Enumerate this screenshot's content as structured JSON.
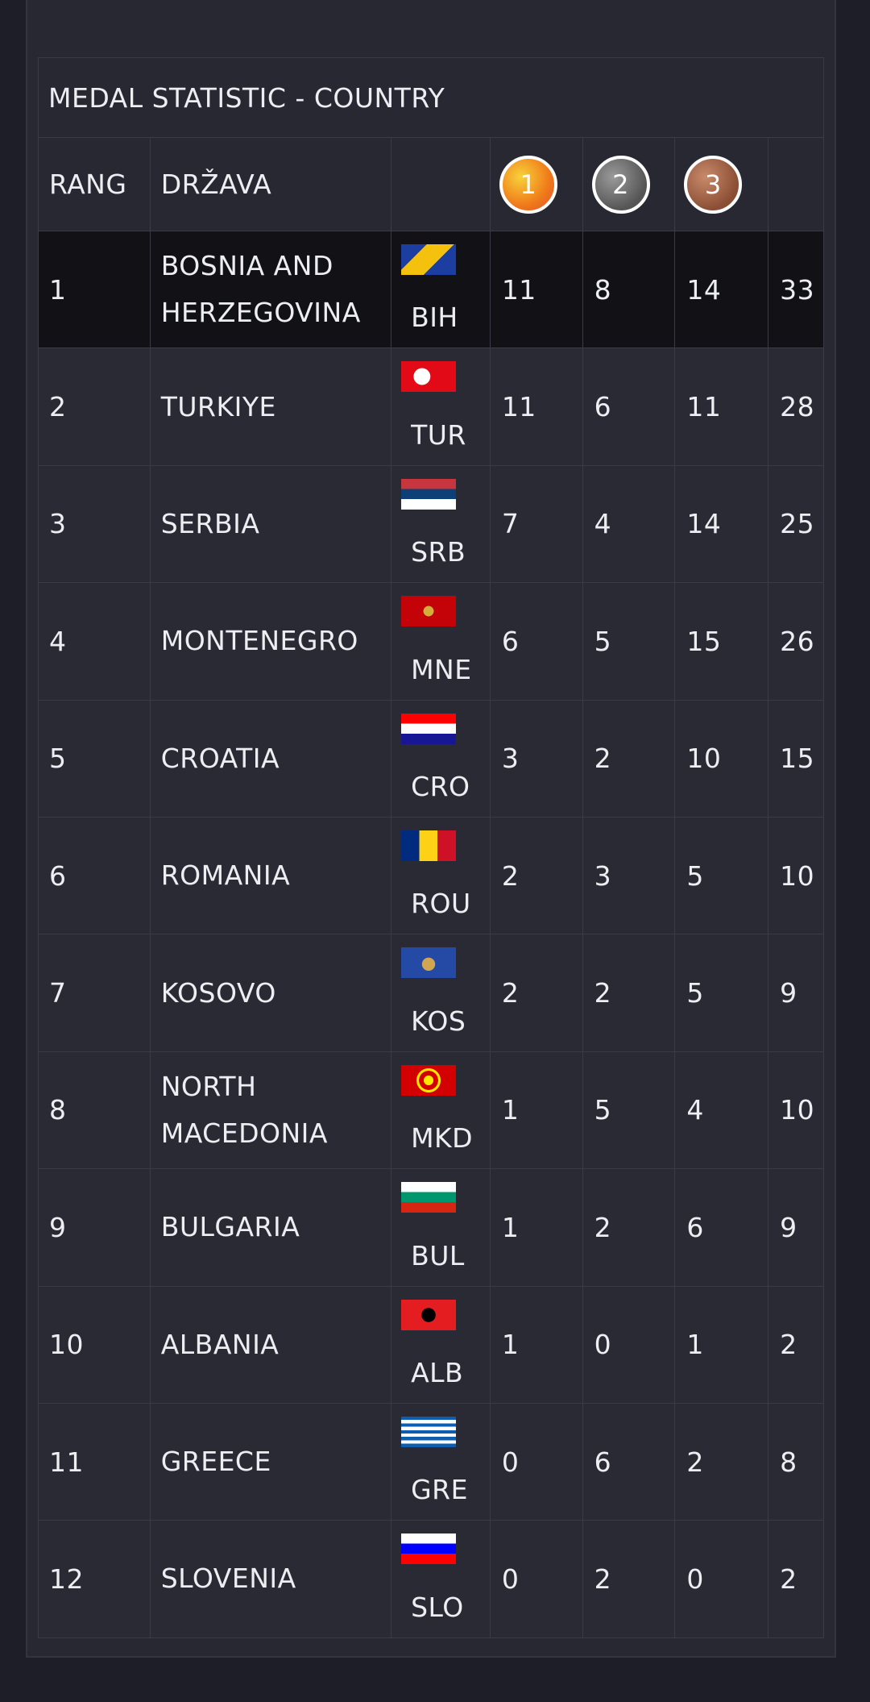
{
  "table": {
    "title": "MEDAL STATISTIC - COUNTRY",
    "header": [
      "RANG",
      "DRŽAVA",
      "1",
      "2",
      "3"
    ],
    "rows": [
      [
        "1",
        "BOSNIA AND HERZEGOVINA",
        "BIH",
        "11",
        "8",
        "14",
        "33"
      ],
      [
        "2",
        "TURKIYE",
        "TUR",
        "11",
        "6",
        "11",
        "28"
      ],
      [
        "3",
        "SERBIA",
        "SRB",
        "7",
        "4",
        "14",
        "25"
      ],
      [
        "4",
        "MONTENEGRO",
        "MNE",
        "6",
        "5",
        "15",
        "26"
      ],
      [
        "5",
        "CROATIA",
        "CRO",
        "3",
        "2",
        "10",
        "15"
      ],
      [
        "6",
        "ROMANIA",
        "ROU",
        "2",
        "3",
        "5",
        "10"
      ],
      [
        "7",
        "KOSOVO",
        "KOS",
        "2",
        "2",
        "5",
        "9"
      ],
      [
        "8",
        "NORTH MACEDONIA",
        "MKD",
        "1",
        "5",
        "4",
        "10"
      ],
      [
        "9",
        "BULGARIA",
        "BUL",
        "1",
        "2",
        "6",
        "9"
      ],
      [
        "10",
        "ALBANIA",
        "ALB",
        "1",
        "0",
        "1",
        "2"
      ],
      [
        "11",
        "GREECE",
        "GRE",
        "0",
        "6",
        "2",
        "8"
      ],
      [
        "12",
        "SLOVENIA",
        "SLO",
        "0",
        "2",
        "0",
        "2"
      ]
    ]
  }
}
